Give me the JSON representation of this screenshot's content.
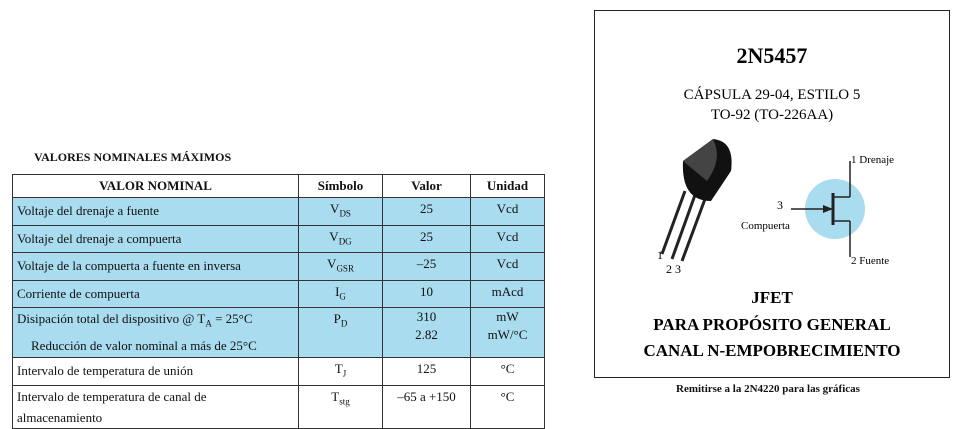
{
  "table": {
    "title": "VALORES NOMINALES MÁXIMOS",
    "headers": [
      "VALOR NOMINAL",
      "Símbolo",
      "Valor",
      "Unidad"
    ],
    "rows": [
      {
        "parameter": [
          "Voltaje del drenaje a fuente"
        ],
        "symbol": {
          "main": "V",
          "sub": "DS"
        },
        "value": [
          "25"
        ],
        "unit": [
          "Vcd"
        ]
      },
      {
        "parameter": [
          "Voltaje del drenaje a compuerta"
        ],
        "symbol": {
          "main": "V",
          "sub": "DG"
        },
        "value": [
          "25"
        ],
        "unit": [
          "Vcd"
        ]
      },
      {
        "parameter": [
          "Voltaje de la compuerta a fuente en inversa"
        ],
        "symbol": {
          "main": "V",
          "sub": "GSR"
        },
        "value": [
          "–25"
        ],
        "unit": [
          "Vcd"
        ]
      },
      {
        "parameter": [
          "Corriente de compuerta"
        ],
        "symbol": {
          "main": "I",
          "sub": "G"
        },
        "value": [
          "10"
        ],
        "unit": [
          "mAcd"
        ]
      },
      {
        "parameter": [
          {
            "text": "Disipación total del dispositivo @ T",
            "sub": "A",
            "tail": " = 25°C"
          },
          "Reducción de valor nominal a más de 25°C"
        ],
        "symbol": {
          "main": "P",
          "sub": "D"
        },
        "value": [
          "310",
          "2.82"
        ],
        "unit": [
          "mW",
          "mW/°C"
        ]
      },
      {
        "parameter": [
          "Intervalo de temperatura de unión"
        ],
        "symbol": {
          "main": "T",
          "sub": "J"
        },
        "value": [
          "125"
        ],
        "unit": [
          "°C"
        ]
      },
      {
        "parameter": [
          "Intervalo de temperatura de canal de almacenamiento"
        ],
        "symbol": {
          "main": "T",
          "sub": "stg"
        },
        "value": [
          "–65 a +150"
        ],
        "unit": [
          "°C"
        ]
      }
    ]
  },
  "device": {
    "part": "2N5457",
    "package": "CÁPSULA 29-04, ESTILO 5",
    "package_alt": "TO-92 (TO-226AA)",
    "pins": {
      "drain": "1 Drenaje",
      "gate_num": "3",
      "gate": "Compuerta",
      "source": "2 Fuente",
      "leg1": "1",
      "leg23": "2 3"
    },
    "type": "JFET",
    "line1": "PARA PROPÓSITO GENERAL",
    "line2": "CANAL N-EMPOBRECIMIENTO"
  },
  "footnote": "Remitirse a la 2N4220 para las gráficas"
}
